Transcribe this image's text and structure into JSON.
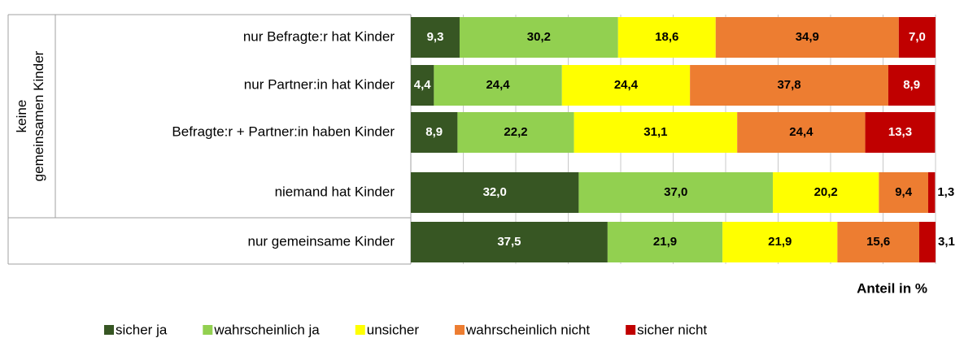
{
  "chart_data": {
    "type": "stacked_bar_horizontal",
    "group_label": "keine gemeinsamen Kinder",
    "categories": [
      "nur Befragte:r hat Kinder",
      "nur Partner:in hat Kinder",
      "Befragte:r + Partner:in haben Kinder",
      "niemand hat Kinder",
      "nur gemeinsame Kinder"
    ],
    "series": [
      {
        "name": "sicher ja",
        "color": "#375623",
        "label_color": "#ffffff",
        "values": [
          9.3,
          4.4,
          8.9,
          32.0,
          37.5
        ],
        "value_labels": [
          "9,3",
          "4,4",
          "8,9",
          "32,0",
          "37,5"
        ]
      },
      {
        "name": "wahrscheinlich ja",
        "color": "#92d050",
        "label_color": "#000000",
        "values": [
          30.2,
          24.4,
          22.2,
          37.0,
          21.9
        ],
        "value_labels": [
          "30,2",
          "24,4",
          "22,2",
          "37,0",
          "21,9"
        ]
      },
      {
        "name": "unsicher",
        "color": "#ffff00",
        "label_color": "#000000",
        "values": [
          18.6,
          24.4,
          31.1,
          20.2,
          21.9
        ],
        "value_labels": [
          "18,6",
          "24,4",
          "31,1",
          "20,2",
          "21,9"
        ]
      },
      {
        "name": "wahrscheinlich nicht",
        "color": "#ed7d31",
        "label_color": "#000000",
        "values": [
          34.9,
          37.8,
          24.4,
          9.4,
          15.6
        ],
        "value_labels": [
          "34,9",
          "37,8",
          "24,4",
          "9,4",
          "15,6"
        ]
      },
      {
        "name": "sicher nicht",
        "color": "#c00000",
        "label_color": "#ffffff",
        "values": [
          7.0,
          8.9,
          13.3,
          1.3,
          3.1
        ],
        "value_labels": [
          "7,0",
          "8,9",
          "13,3",
          "1,3",
          "3,1"
        ]
      }
    ],
    "xlabel": "Anteil in %",
    "xlim": [
      0,
      100
    ],
    "xticks": [
      0,
      10,
      20,
      30,
      40,
      50,
      60,
      70,
      80,
      90,
      100
    ],
    "grid": true
  }
}
